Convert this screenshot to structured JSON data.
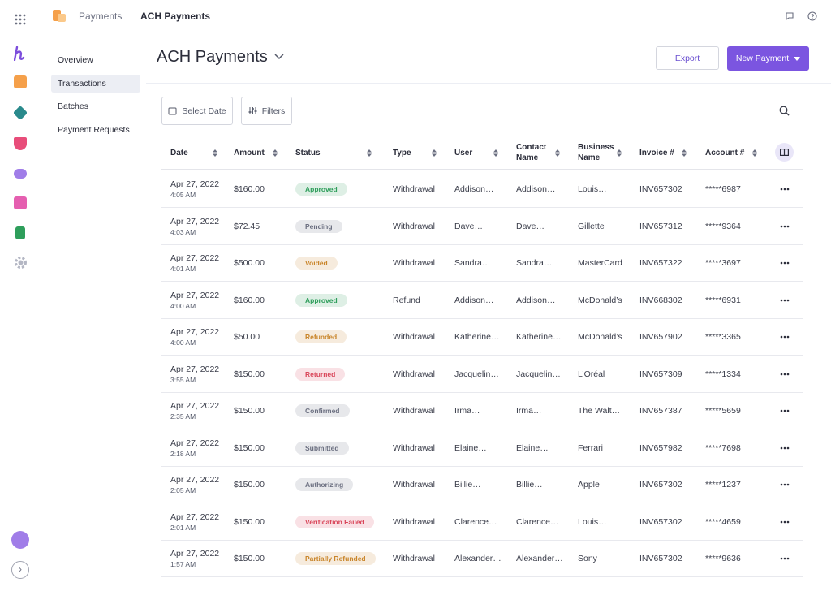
{
  "topbar": {
    "app": "Payments",
    "page": "ACH Payments"
  },
  "nav": [
    "Overview",
    "Transactions",
    "Batches",
    "Payment Requests"
  ],
  "nav_selected": 1,
  "header": {
    "title": "ACH Payments",
    "export": "Export",
    "new_payment": "New Payment"
  },
  "toolbar": {
    "date": "Select Date",
    "filters": "Filters"
  },
  "table": {
    "columns": [
      "Date",
      "Amount",
      "Status",
      "Type",
      "User",
      "Contact Name",
      "Business Name",
      "Invoice #",
      "Account #"
    ],
    "rows": [
      {
        "date": "Apr 27, 2022",
        "time": "4:05 AM",
        "amount": "$160.00",
        "status": "Approved",
        "status_color": "#2e9e5b",
        "type": "Withdrawal",
        "user": "Addison…",
        "contact": "Addison…",
        "business": "Louis…",
        "invoice": "INV657302",
        "account": "*****6987"
      },
      {
        "date": "Apr 27, 2022",
        "time": "4:03 AM",
        "amount": "$72.45",
        "status": "Pending",
        "status_color": "#6b6f80",
        "type": "Withdrawal",
        "user": "Dave…",
        "contact": "Dave…",
        "business": "Gillette",
        "invoice": "INV657312",
        "account": "*****9364"
      },
      {
        "date": "Apr 27, 2022",
        "time": "4:01 AM",
        "amount": "$500.00",
        "status": "Voided",
        "status_color": "#c9852a",
        "type": "Withdrawal",
        "user": "Sandra…",
        "contact": "Sandra…",
        "business": "MasterCard",
        "invoice": "INV657322",
        "account": "*****3697"
      },
      {
        "date": "Apr 27, 2022",
        "time": "4:00 AM",
        "amount": "$160.00",
        "status": "Approved",
        "status_color": "#2e9e5b",
        "type": "Refund",
        "user": "Addison…",
        "contact": "Addison…",
        "business": "McDonald’s",
        "invoice": "INV668302",
        "account": "*****6931"
      },
      {
        "date": "Apr 27, 2022",
        "time": "4:00 AM",
        "amount": "$50.00",
        "status": "Refunded",
        "status_color": "#c9852a",
        "type": "Withdrawal",
        "user": "Katherine…",
        "contact": "Katherine…",
        "business": "McDonald’s",
        "invoice": "INV657902",
        "account": "*****3365"
      },
      {
        "date": "Apr 27, 2022",
        "time": "3:55 AM",
        "amount": "$150.00",
        "status": "Returned",
        "status_color": "#d9465a",
        "type": "Withdrawal",
        "user": "Jacquelin…",
        "contact": "Jacquelin…",
        "business": "L’Oréal",
        "invoice": "INV657309",
        "account": "*****1334"
      },
      {
        "date": "Apr 27, 2022",
        "time": "2:35 AM",
        "amount": "$150.00",
        "status": "Confirmed",
        "status_color": "#6b6f80",
        "type": "Withdrawal",
        "user": "Irma…",
        "contact": "Irma…",
        "business": "The Walt…",
        "invoice": "INV657387",
        "account": "*****5659"
      },
      {
        "date": "Apr 27, 2022",
        "time": "2:18 AM",
        "amount": "$150.00",
        "status": "Submitted",
        "status_color": "#6b6f80",
        "type": "Withdrawal",
        "user": "Elaine…",
        "contact": "Elaine…",
        "business": "Ferrari",
        "invoice": "INV657982",
        "account": "*****7698"
      },
      {
        "date": "Apr 27, 2022",
        "time": "2:05 AM",
        "amount": "$150.00",
        "status": "Authorizing",
        "status_color": "#6b6f80",
        "type": "Withdrawal",
        "user": "Billie…",
        "contact": "Billie…",
        "business": "Apple",
        "invoice": "INV657302",
        "account": "*****1237"
      },
      {
        "date": "Apr 27, 2022",
        "time": "2:01 AM",
        "amount": "$150.00",
        "status": "Verification Failed",
        "status_color": "#d9465a",
        "type": "Withdrawal",
        "user": "Clarence…",
        "contact": "Clarence…",
        "business": "Louis…",
        "invoice": "INV657302",
        "account": "*****4659"
      },
      {
        "date": "Apr 27, 2022",
        "time": "1:57 AM",
        "amount": "$150.00",
        "status": "Partially Refunded",
        "status_color": "#c9852a",
        "type": "Withdrawal",
        "user": "Alexander…",
        "contact": "Alexander…",
        "business": "Sony",
        "invoice": "INV657302",
        "account": "*****9636"
      }
    ]
  }
}
